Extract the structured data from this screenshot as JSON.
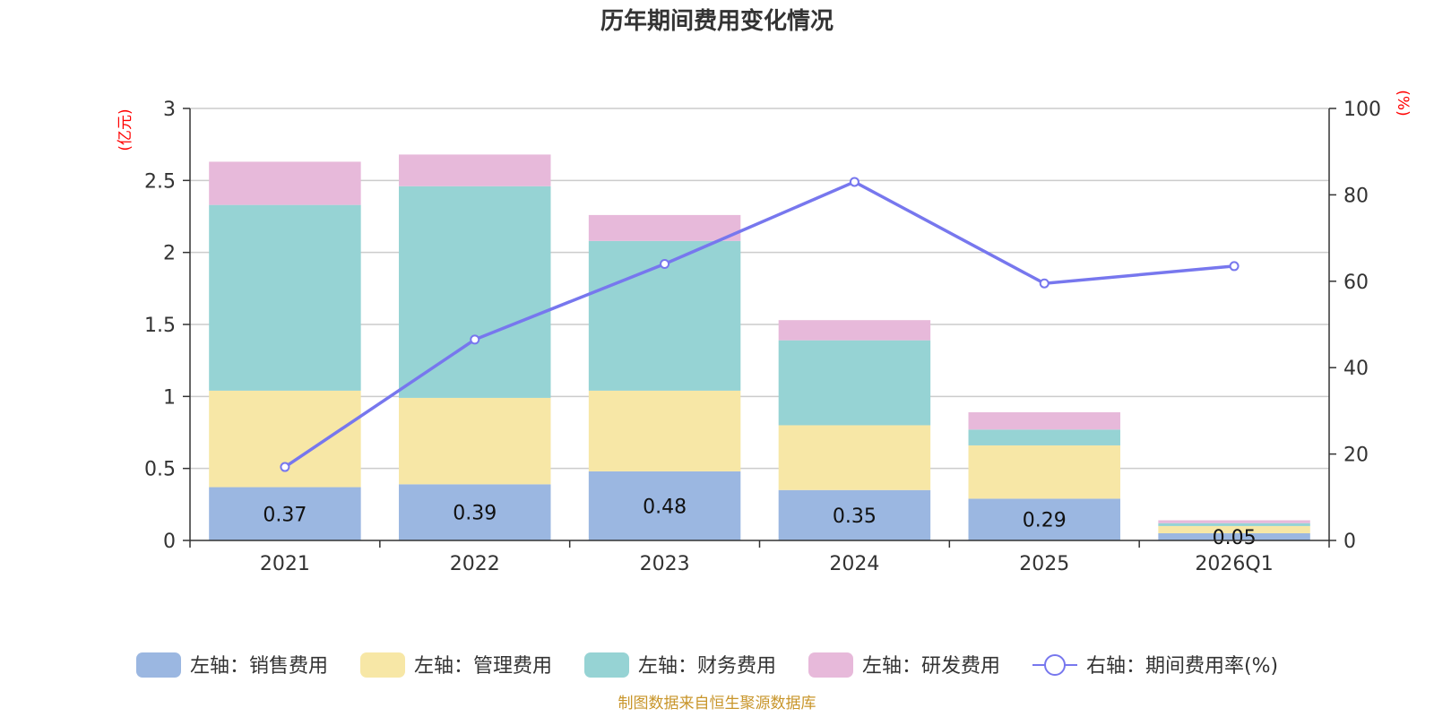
{
  "chart_data": {
    "type": "bar",
    "stacked": true,
    "title": "历年期间费用变化情况",
    "categories": [
      "2021",
      "2022",
      "2023",
      "2024",
      "2025",
      "2026Q1"
    ],
    "series": [
      {
        "name": "左轴：销售费用",
        "axis": "left",
        "color": "#9bb7e1",
        "values": [
          0.37,
          0.39,
          0.48,
          0.35,
          0.29,
          0.05
        ],
        "labels": [
          "0.37",
          "0.39",
          "0.48",
          "0.35",
          "0.29",
          "0.05"
        ]
      },
      {
        "name": "左轴：管理费用",
        "axis": "left",
        "color": "#f7e7a6",
        "values": [
          0.67,
          0.6,
          0.56,
          0.45,
          0.37,
          0.05
        ]
      },
      {
        "name": "左轴：财务费用",
        "axis": "left",
        "color": "#96d3d4",
        "values": [
          1.29,
          1.47,
          1.04,
          0.59,
          0.11,
          0.02
        ]
      },
      {
        "name": "左轴：研发费用",
        "axis": "left",
        "color": "#e7b9da",
        "values": [
          0.3,
          0.22,
          0.18,
          0.14,
          0.12,
          0.02
        ]
      }
    ],
    "line_series": {
      "name": "右轴：期间费用率(%)",
      "axis": "right",
      "color": "#7777ee",
      "values": [
        17,
        46.5,
        64,
        83,
        59.5,
        63.5
      ]
    },
    "left_axis": {
      "unit": "(亿元)",
      "min": 0,
      "max": 3,
      "ticks": [
        0,
        0.5,
        1,
        1.5,
        2,
        2.5,
        3
      ],
      "tick_labels": [
        "0",
        "0.5",
        "1",
        "1.5",
        "2",
        "2.5",
        "3"
      ]
    },
    "right_axis": {
      "unit": "(%)",
      "min": 0,
      "max": 100,
      "ticks": [
        0,
        20,
        40,
        60,
        80,
        100
      ],
      "tick_labels": [
        "0",
        "20",
        "40",
        "60",
        "80",
        "100"
      ]
    },
    "grid": true,
    "legend_position": "bottom"
  },
  "source": "制图数据来自恒生聚源数据库"
}
